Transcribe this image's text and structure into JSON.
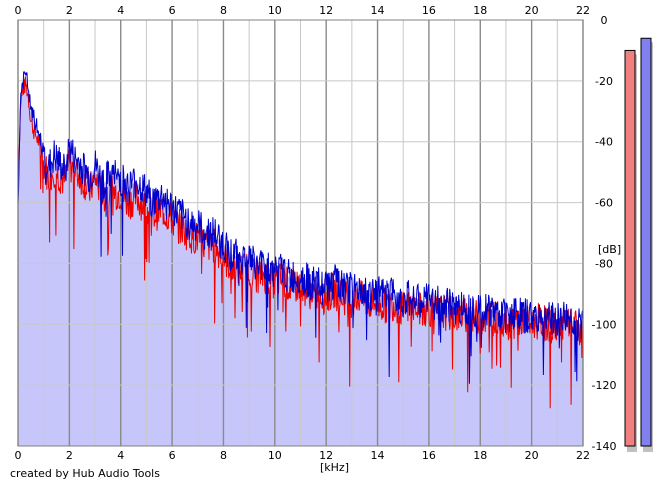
{
  "credit": "created by Hub Audio Tools",
  "chart_data": {
    "type": "line",
    "title": "",
    "xlabel": "[kHz]",
    "ylabel": "[dB]",
    "xlim": [
      0,
      22
    ],
    "ylim": [
      -140,
      0
    ],
    "x_ticks": [
      0,
      2,
      4,
      6,
      8,
      10,
      12,
      14,
      16,
      18,
      20,
      22
    ],
    "y_ticks": [
      0,
      -20,
      -40,
      -60,
      -80,
      -100,
      -120,
      -140
    ],
    "y_tick_labels": [
      "0",
      "-20",
      "-40",
      "-60",
      "-80",
      "-100",
      "-120",
      "-140"
    ],
    "grid": true,
    "colors": {
      "fill": "#c6c6fa",
      "blue": "#0000cc",
      "red": "#ee0000",
      "grid_major": "#8a8a8a",
      "grid_minor": "#c8c8c8",
      "meter_left": "#f08080",
      "meter_right": "#8080ee"
    },
    "series": [
      {
        "color": "blue",
        "x": [
          0.0,
          0.1,
          0.2,
          0.3,
          0.4,
          0.5,
          0.6,
          0.8,
          1.0,
          1.2,
          1.4,
          1.6,
          1.8,
          2.0,
          2.2,
          2.5,
          2.8,
          3.0,
          3.3,
          3.6,
          4.0,
          4.3,
          4.6,
          5.0,
          5.3,
          5.6,
          6.0,
          6.3,
          6.6,
          7.0,
          7.3,
          7.6,
          8.0,
          8.3,
          8.6,
          9.0,
          9.3,
          9.6,
          10.0,
          10.3,
          10.6,
          11.0,
          11.3,
          11.6,
          12.0,
          12.3,
          12.6,
          13.0,
          13.3,
          13.6,
          14.0,
          14.3,
          14.6,
          15.0,
          15.3,
          15.6,
          16.0,
          16.3,
          16.6,
          17.0,
          17.3,
          17.6,
          18.0,
          18.3,
          18.6,
          19.0,
          19.3,
          19.6,
          20.0,
          20.3,
          20.6,
          21.0,
          21.3,
          21.6,
          22.0
        ],
        "values": [
          -62,
          -25,
          -20,
          -18,
          -22,
          -30,
          -32,
          -37,
          -44,
          -49,
          -45,
          -47,
          -50,
          -42,
          -46,
          -48,
          -52,
          -48,
          -54,
          -51,
          -52,
          -55,
          -53,
          -57,
          -60,
          -58,
          -62,
          -64,
          -66,
          -68,
          -70,
          -70,
          -74,
          -77,
          -78,
          -78,
          -81,
          -80,
          -83,
          -82,
          -85,
          -84,
          -86,
          -87,
          -88,
          -86,
          -88,
          -89,
          -88,
          -90,
          -90,
          -91,
          -90,
          -92,
          -91,
          -93,
          -92,
          -93,
          -94,
          -94,
          -95,
          -94,
          -96,
          -95,
          -96,
          -97,
          -96,
          -97,
          -98,
          -97,
          -98,
          -99,
          -98,
          -99,
          -100
        ]
      },
      {
        "color": "red",
        "x": [
          0.0,
          0.1,
          0.2,
          0.3,
          0.4,
          0.5,
          0.6,
          0.8,
          1.0,
          1.2,
          1.4,
          1.6,
          1.8,
          2.0,
          2.2,
          2.5,
          2.8,
          3.0,
          3.3,
          3.6,
          4.0,
          4.3,
          4.6,
          5.0,
          5.3,
          5.6,
          6.0,
          6.3,
          6.6,
          7.0,
          7.3,
          7.6,
          8.0,
          8.3,
          8.6,
          9.0,
          9.3,
          9.6,
          10.0,
          10.3,
          10.6,
          11.0,
          11.3,
          11.6,
          12.0,
          12.3,
          12.6,
          13.0,
          13.3,
          13.6,
          14.0,
          14.3,
          14.6,
          15.0,
          15.3,
          15.6,
          16.0,
          16.3,
          16.6,
          17.0,
          17.3,
          17.6,
          18.0,
          18.3,
          18.6,
          19.0,
          19.3,
          19.6,
          20.0,
          20.3,
          20.6,
          21.0,
          21.3,
          21.6,
          22.0
        ],
        "values": [
          -55,
          -27,
          -23,
          -21,
          -25,
          -33,
          -36,
          -40,
          -47,
          -52,
          -49,
          -51,
          -53,
          -47,
          -50,
          -52,
          -56,
          -52,
          -58,
          -56,
          -57,
          -60,
          -58,
          -62,
          -64,
          -62,
          -66,
          -68,
          -70,
          -72,
          -74,
          -74,
          -78,
          -81,
          -82,
          -82,
          -84,
          -84,
          -86,
          -85,
          -88,
          -87,
          -89,
          -90,
          -91,
          -89,
          -91,
          -92,
          -91,
          -93,
          -93,
          -94,
          -93,
          -95,
          -94,
          -95,
          -95,
          -96,
          -96,
          -97,
          -97,
          -97,
          -98,
          -98,
          -98,
          -99,
          -99,
          -99,
          -100,
          -99,
          -100,
          -101,
          -100,
          -101,
          -102
        ]
      }
    ],
    "meters": {
      "left_level_db": -10,
      "right_level_db": -6
    }
  }
}
